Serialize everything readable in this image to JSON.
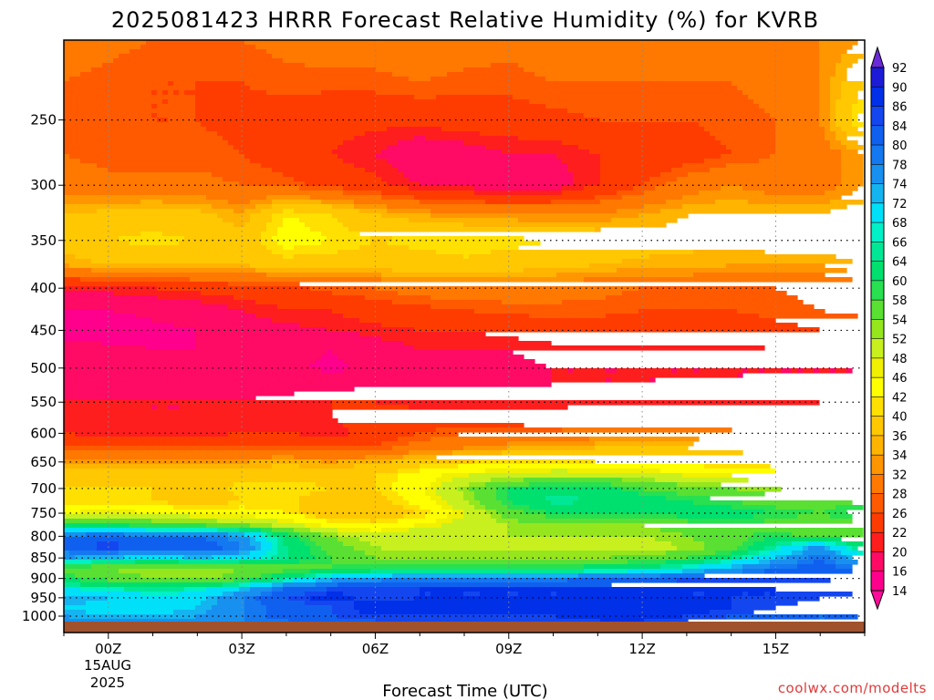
{
  "chart_data": {
    "type": "heatmap",
    "title": "2025081423 HRRR Forecast Relative Humidity (%) for KVRB",
    "xlabel": "Forecast Time (UTC)",
    "ylabel": "",
    "credit": "coolwx.com/modelts",
    "x_ticks": [
      "00Z",
      "03Z",
      "06Z",
      "09Z",
      "12Z",
      "15Z"
    ],
    "x_tick_hours": [
      0,
      3,
      6,
      9,
      12,
      15
    ],
    "x_date_line1": "15AUG",
    "x_date_line2": "2025",
    "xlim_hours": [
      -1,
      17
    ],
    "y_ticks": [
      "250",
      "300",
      "350",
      "400",
      "450",
      "500",
      "550",
      "600",
      "650",
      "700",
      "750",
      "800",
      "850",
      "900",
      "950",
      "1000"
    ],
    "y_tick_values": [
      250,
      300,
      350,
      400,
      450,
      500,
      550,
      600,
      650,
      700,
      750,
      800,
      850,
      900,
      950,
      1000
    ],
    "ylim_hpa": [
      200,
      1013
    ],
    "y_scale": "log",
    "grid": true,
    "colorbar_levels": [
      "92",
      "90",
      "86",
      "84",
      "80",
      "78",
      "74",
      "72",
      "68",
      "66",
      "64",
      "60",
      "58",
      "54",
      "52",
      "48",
      "46",
      "42",
      "40",
      "36",
      "34",
      "32",
      "28",
      "26",
      "22",
      "20",
      "16",
      "14"
    ],
    "colorbar_colors": [
      "#1c00c8",
      "#1c1cd8",
      "#0030e8",
      "#1446f0",
      "#1060f0",
      "#1478f0",
      "#1890f0",
      "#14b4f0",
      "#00e0f8",
      "#00f0c8",
      "#00e896",
      "#00e06e",
      "#28e050",
      "#5ae032",
      "#96e61e",
      "#c8f01e",
      "#f0f000",
      "#ffff00",
      "#ffe000",
      "#ffc800",
      "#ffb400",
      "#ff9600",
      "#ff7800",
      "#ff5a00",
      "#ff3c00",
      "#ff1e1e",
      "#ff0a64",
      "#ff008c"
    ],
    "colorbar_min_color": "#ff0a9a",
    "colorbar_max_color": "#6a2ad8",
    "ground_color": "#a0522d",
    "bands_note": "y in hPa, values in % RH by forecast hour",
    "hours": [
      -1,
      0,
      1,
      2,
      3,
      4,
      5,
      6,
      7,
      8,
      9,
      10,
      11,
      12,
      13,
      14,
      15,
      16,
      17
    ],
    "levels_hpa": [
      200,
      225,
      250,
      275,
      300,
      325,
      350,
      375,
      400,
      425,
      450,
      475,
      500,
      525,
      550,
      575,
      600,
      625,
      650,
      675,
      700,
      725,
      750,
      775,
      800,
      825,
      850,
      875,
      900,
      925,
      950,
      975,
      1000,
      1013
    ],
    "values": [
      [
        30,
        29,
        28,
        28,
        28,
        29,
        30,
        30,
        31,
        30,
        29,
        30,
        31,
        30,
        29,
        30,
        31,
        32,
        34
      ],
      [
        28,
        27,
        26,
        26,
        26,
        27,
        27,
        27,
        28,
        27,
        27,
        28,
        28,
        28,
        28,
        28,
        29,
        32,
        40
      ],
      [
        27,
        26,
        26,
        26,
        25,
        24,
        23,
        23,
        23,
        24,
        24,
        25,
        26,
        26,
        26,
        27,
        28,
        32,
        44
      ],
      [
        28,
        27,
        27,
        27,
        26,
        24,
        22,
        20,
        17,
        18,
        20,
        20,
        22,
        23,
        24,
        26,
        28,
        30,
        34
      ],
      [
        30,
        29,
        29,
        29,
        28,
        27,
        25,
        23,
        20,
        19,
        17,
        18,
        22,
        26,
        30,
        32,
        30,
        30,
        34
      ],
      [
        36,
        37,
        38,
        37,
        34,
        42,
        40,
        36,
        34,
        32,
        32,
        32,
        32,
        34,
        36,
        36,
        36,
        36,
        38
      ],
      [
        38,
        40,
        41,
        40,
        38,
        44,
        42,
        40,
        41,
        42,
        41,
        40,
        39,
        38,
        37,
        37,
        38,
        38,
        40
      ],
      [
        34,
        36,
        36,
        36,
        36,
        38,
        38,
        38,
        38,
        39,
        38,
        37,
        36,
        35,
        35,
        34,
        34,
        34,
        36
      ],
      [
        20,
        21,
        22,
        23,
        24,
        25,
        27,
        28,
        30,
        30,
        30,
        30,
        29,
        28,
        28,
        28,
        28,
        29,
        30
      ],
      [
        16,
        16,
        17,
        18,
        20,
        22,
        22,
        24,
        25,
        26,
        27,
        27,
        27,
        26,
        26,
        26,
        27,
        28,
        29
      ],
      [
        15,
        14,
        15,
        16,
        18,
        19,
        20,
        21,
        22,
        22,
        23,
        24,
        24,
        24,
        24,
        24,
        25,
        26,
        26
      ],
      [
        17,
        17,
        16,
        16,
        17,
        17,
        16,
        18,
        20,
        20,
        20,
        21,
        21,
        21,
        21,
        21,
        22,
        22,
        22
      ],
      [
        19,
        18,
        17,
        18,
        18,
        17,
        15,
        17,
        18,
        19,
        19,
        20,
        20,
        20,
        20,
        20,
        20,
        20,
        20
      ],
      [
        19,
        18,
        18,
        18,
        19,
        19,
        19,
        20,
        20,
        20,
        20,
        20,
        20,
        20,
        20,
        20,
        20,
        20,
        20
      ],
      [
        20,
        20,
        20,
        20,
        20,
        21,
        22,
        22,
        21,
        21,
        21,
        21,
        21,
        21,
        21,
        21,
        21,
        22,
        22
      ],
      [
        21,
        21,
        20,
        20,
        21,
        22,
        22,
        23,
        24,
        24,
        24,
        24,
        25,
        25,
        25,
        25,
        25,
        25,
        25
      ],
      [
        22,
        21,
        21,
        21,
        22,
        22,
        21,
        23,
        26,
        28,
        28,
        29,
        30,
        30,
        30,
        29,
        28,
        28,
        28
      ],
      [
        26,
        26,
        26,
        26,
        27,
        27,
        26,
        27,
        30,
        32,
        34,
        35,
        36,
        37,
        36,
        35,
        34,
        34,
        34
      ],
      [
        33,
        33,
        34,
        33,
        34,
        35,
        34,
        35,
        38,
        40,
        41,
        41,
        40,
        40,
        40,
        39,
        38,
        38,
        38
      ],
      [
        38,
        38,
        38,
        38,
        39,
        39,
        38,
        40,
        44,
        48,
        50,
        52,
        52,
        50,
        48,
        46,
        44,
        44,
        44
      ],
      [
        40,
        40,
        40,
        38,
        41,
        42,
        40,
        40,
        45,
        53,
        60,
        63,
        62,
        58,
        56,
        54,
        52,
        50,
        50
      ],
      [
        40,
        41,
        40,
        38,
        40,
        41,
        37,
        38,
        44,
        52,
        60,
        65,
        64,
        62,
        60,
        58,
        56,
        56,
        58
      ],
      [
        46,
        48,
        46,
        44,
        44,
        42,
        36,
        36,
        40,
        48,
        56,
        60,
        60,
        60,
        62,
        62,
        60,
        58,
        62
      ],
      [
        62,
        60,
        58,
        58,
        54,
        50,
        44,
        42,
        46,
        50,
        52,
        54,
        54,
        54,
        56,
        58,
        56,
        54,
        58
      ],
      [
        80,
        82,
        80,
        80,
        76,
        62,
        54,
        50,
        52,
        52,
        52,
        52,
        52,
        52,
        54,
        56,
        60,
        56,
        58
      ],
      [
        82,
        86,
        82,
        84,
        78,
        64,
        56,
        52,
        50,
        50,
        50,
        50,
        50,
        50,
        52,
        56,
        66,
        76,
        60
      ],
      [
        74,
        72,
        70,
        72,
        70,
        64,
        58,
        54,
        54,
        54,
        54,
        54,
        54,
        55,
        58,
        64,
        72,
        80,
        70
      ],
      [
        56,
        54,
        52,
        52,
        54,
        56,
        58,
        60,
        60,
        60,
        60,
        60,
        62,
        64,
        68,
        74,
        80,
        82,
        78
      ],
      [
        60,
        56,
        54,
        52,
        56,
        64,
        72,
        76,
        78,
        78,
        78,
        78,
        80,
        82,
        84,
        84,
        84,
        84,
        82
      ],
      [
        68,
        66,
        64,
        66,
        72,
        80,
        84,
        86,
        86,
        86,
        86,
        86,
        86,
        86,
        86,
        86,
        86,
        86,
        86
      ],
      [
        74,
        72,
        70,
        70,
        78,
        84,
        88,
        84,
        86,
        86,
        86,
        86,
        86,
        86,
        86,
        86,
        86,
        84,
        82
      ],
      [
        72,
        70,
        70,
        72,
        78,
        82,
        84,
        88,
        88,
        88,
        88,
        88,
        90,
        90,
        88,
        86,
        84,
        82,
        80
      ],
      [
        74,
        72,
        72,
        74,
        78,
        82,
        84,
        86,
        86,
        86,
        86,
        86,
        88,
        88,
        86,
        84,
        82,
        80,
        80
      ],
      [
        76,
        74,
        74,
        76,
        78,
        80,
        82,
        84,
        84,
        84,
        84,
        84,
        86,
        86,
        84,
        82,
        80,
        80,
        80
      ]
    ]
  }
}
